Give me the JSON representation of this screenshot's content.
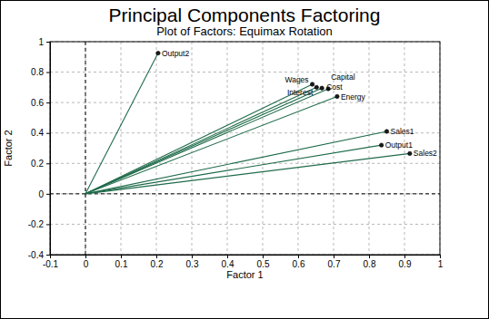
{
  "chart_data": {
    "type": "vector",
    "title": "Principal Components Factoring",
    "subtitle": "Plot of Factors: Equimax Rotation",
    "x_label": "Factor 1",
    "y_label": "Factor 2",
    "labels": [
      "Output2",
      "Wages",
      "Interest",
      "Cost",
      "Capital",
      "Energy",
      "Sales1",
      "Output1",
      "Sales2"
    ],
    "x": [
      0.205,
      0.64,
      0.652,
      0.667,
      0.685,
      0.71,
      0.85,
      0.835,
      0.915
    ],
    "values": [
      0.925,
      0.72,
      0.7,
      0.695,
      0.69,
      0.64,
      0.41,
      0.32,
      0.265
    ],
    "origin": [
      0,
      0
    ],
    "xlim": [
      -0.1,
      1
    ],
    "xticks": [
      -0.1,
      0,
      0.1,
      0.2,
      0.3,
      0.4,
      0.5,
      0.6,
      0.7,
      0.8,
      0.9,
      1
    ],
    "ylim": [
      -0.4,
      1
    ],
    "yticks": [
      -0.4,
      -0.2,
      0,
      0.2,
      0.4,
      0.6,
      0.8,
      1
    ],
    "grid": true,
    "color": "#1f6b4a",
    "marker": "circle",
    "line_style": "solid"
  }
}
